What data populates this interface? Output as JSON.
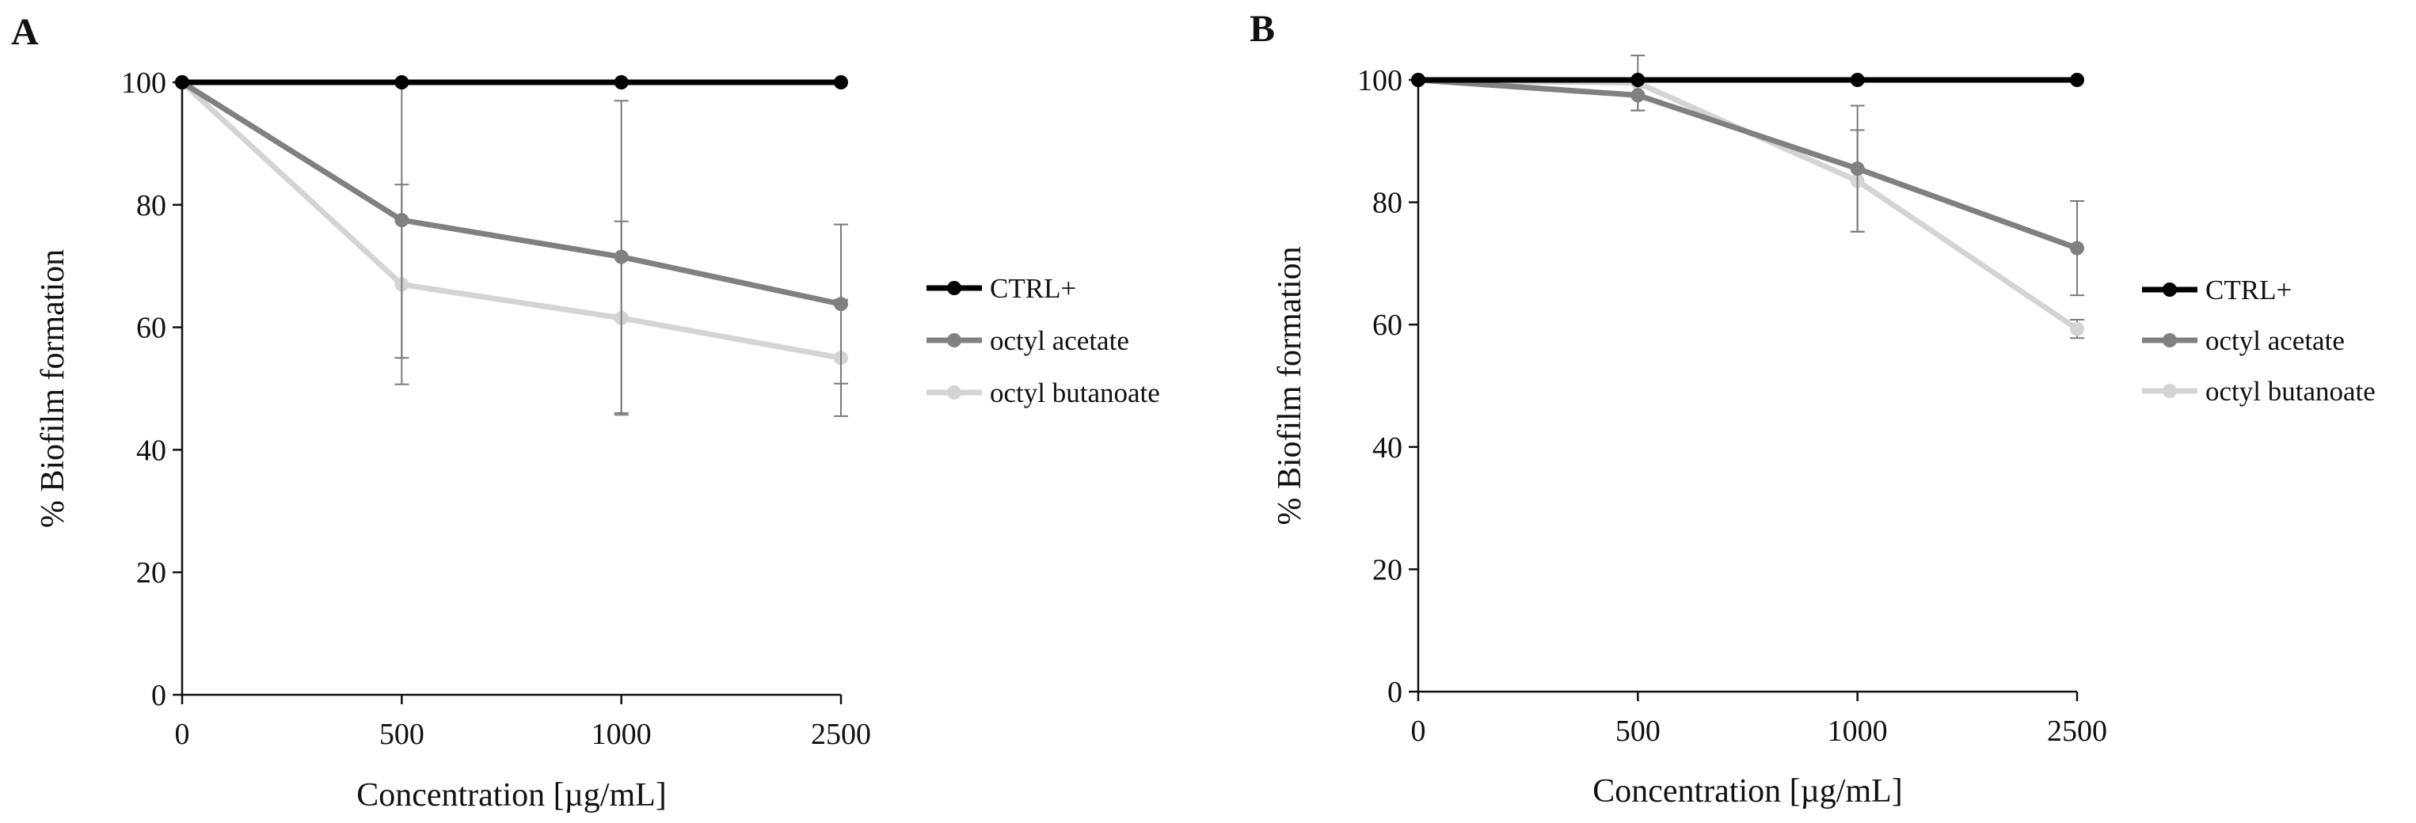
{
  "chart_data": [
    {
      "type": "line",
      "panel_label": "A",
      "title": "",
      "xlabel": "Concentration [µg/mL]",
      "ylabel": "% Biofilm formation",
      "categories": [
        "0",
        "500",
        "1000",
        "2500"
      ],
      "ylim": [
        0,
        100
      ],
      "yticks": [
        "0",
        "20",
        "40",
        "60",
        "80",
        "100"
      ],
      "grid": false,
      "legend_position": "right",
      "series": [
        {
          "name": "CTRL+",
          "color": "#000000",
          "values": [
            100,
            100,
            100,
            100
          ],
          "errors": [
            0,
            0,
            0,
            0
          ]
        },
        {
          "name": "octyl acetate",
          "color": "#808080",
          "values": [
            100,
            77.5,
            71.5,
            63.8
          ],
          "errors": [
            0,
            22.5,
            25.5,
            13
          ]
        },
        {
          "name": "octyl butanoate",
          "color": "#d4d4d4",
          "values": [
            100,
            67,
            61.5,
            55
          ],
          "errors": [
            0,
            16.3,
            15.8,
            9.5
          ]
        }
      ]
    },
    {
      "type": "line",
      "panel_label": "B",
      "title": "",
      "xlabel": "Concentration [µg/mL]",
      "ylabel": "% Biofilm formation",
      "categories": [
        "0",
        "500",
        "1000",
        "2500"
      ],
      "ylim": [
        0,
        100
      ],
      "yticks": [
        "0",
        "20",
        "40",
        "60",
        "80",
        "100"
      ],
      "grid": false,
      "legend_position": "right",
      "series": [
        {
          "name": "CTRL+",
          "color": "#000000",
          "values": [
            100,
            100,
            100,
            100
          ],
          "errors": [
            0,
            0,
            0,
            0
          ]
        },
        {
          "name": "octyl acetate",
          "color": "#808080",
          "values": [
            100,
            97.5,
            85.5,
            72.5
          ],
          "errors": [
            0,
            2.5,
            10.3,
            7.7
          ]
        },
        {
          "name": "octyl butanoate",
          "color": "#d4d4d4",
          "values": [
            100,
            99.5,
            83.5,
            59.3
          ],
          "errors": [
            0,
            4.5,
            8.3,
            1.5
          ]
        }
      ]
    }
  ]
}
